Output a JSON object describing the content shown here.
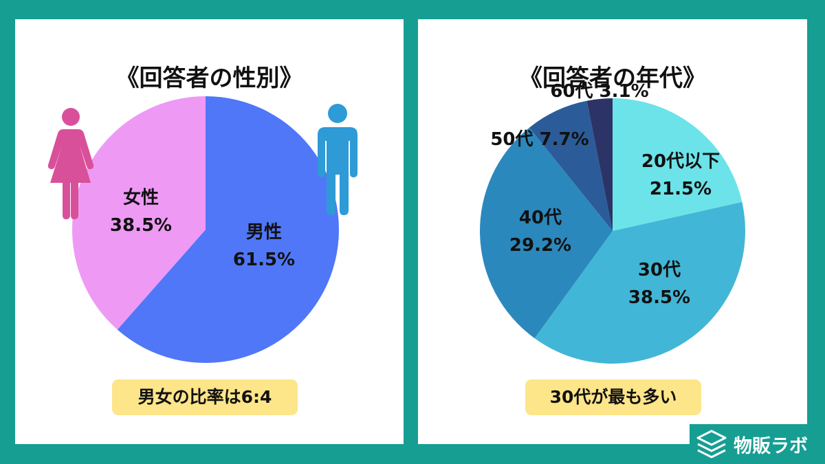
{
  "chart_data": [
    {
      "type": "pie",
      "title": "《回答者の性別》",
      "slices": [
        {
          "name": "男性",
          "value": 61.5,
          "label": "61.5%",
          "color": "#5077f8"
        },
        {
          "name": "女性",
          "value": 38.5,
          "label": "38.5%",
          "color": "#ee9af5"
        }
      ],
      "icons": [
        "female-person-icon",
        "male-person-icon"
      ],
      "icon_colors": {
        "female": "#d9509a",
        "male": "#2e9ad6"
      },
      "callout": "男女の比率は6:4"
    },
    {
      "type": "pie",
      "title": "《回答者の年代》",
      "slices": [
        {
          "name": "20代以下",
          "value": 21.5,
          "label": "21.5%",
          "color": "#6be3e9"
        },
        {
          "name": "30代",
          "value": 38.5,
          "label": "38.5%",
          "color": "#42b6d6"
        },
        {
          "name": "40代",
          "value": 29.2,
          "label": "29.2%",
          "color": "#2b88bd"
        },
        {
          "name": "50代",
          "value": 7.7,
          "label": "7.7%",
          "color": "#2b5c99"
        },
        {
          "name": "60代",
          "value": 3.1,
          "label": "3.1%",
          "color": "#2c3366"
        }
      ],
      "callout": "30代が最も多い"
    }
  ],
  "brand": {
    "name": "物販ラボ",
    "icon": "stacked-layers-icon"
  }
}
